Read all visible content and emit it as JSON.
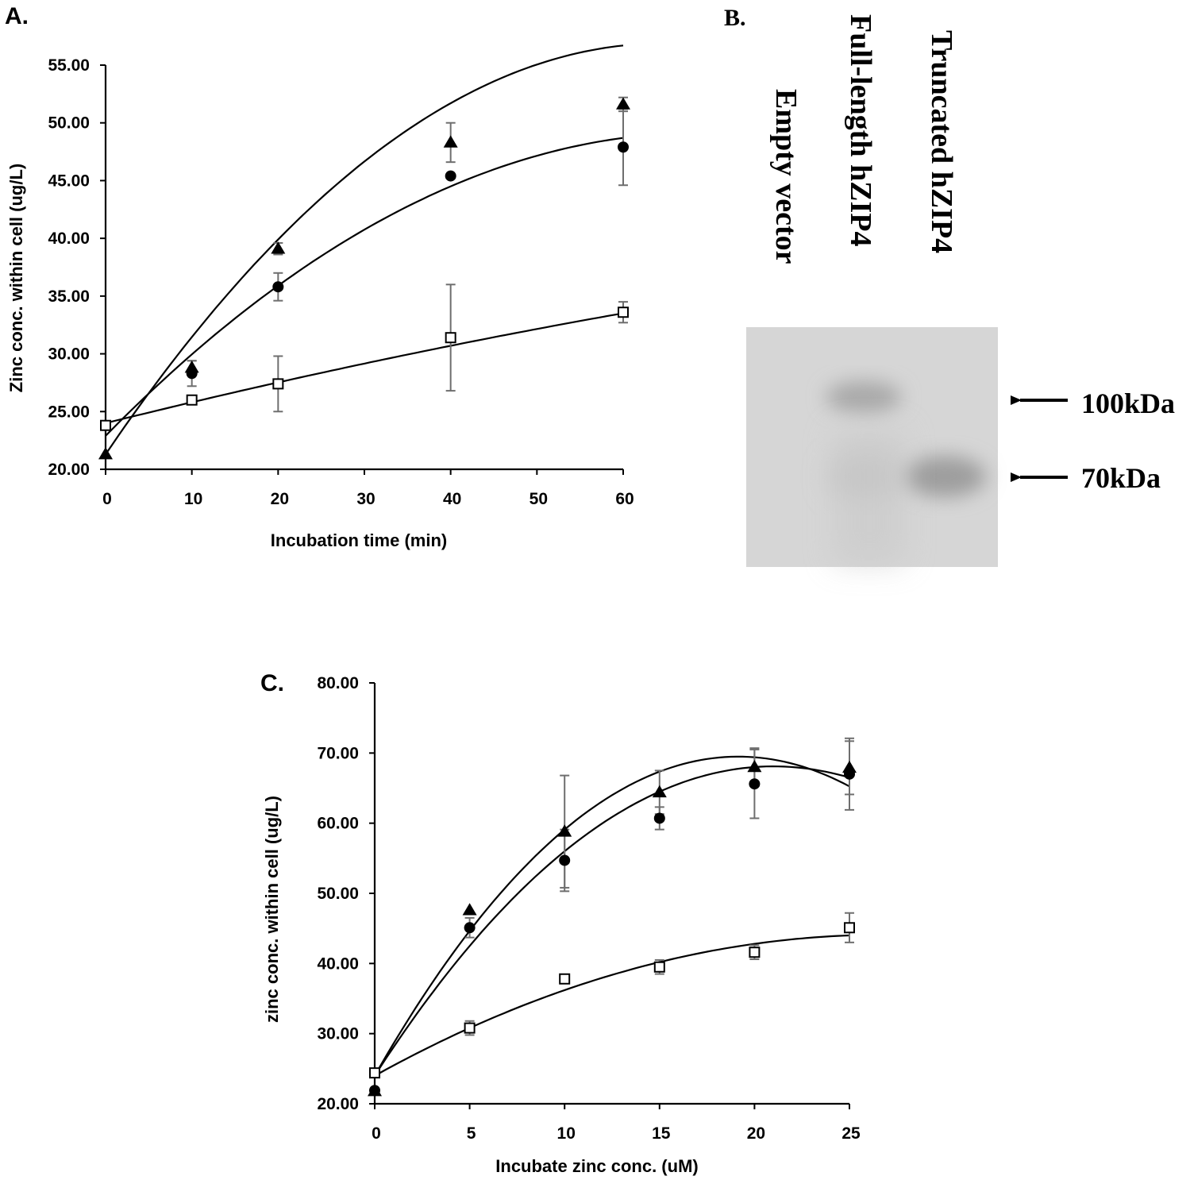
{
  "chart_data": [
    {
      "panel": "A.",
      "type": "scatter",
      "xlabel": "Incubation time (min)",
      "ylabel": "Zinc conc. within cell  (ug/L)",
      "xlim": [
        0,
        60
      ],
      "ylim": [
        20,
        55
      ],
      "xticks": [
        "0",
        "10",
        "20",
        "30",
        "40",
        "50",
        "60"
      ],
      "yticks": [
        "20.00",
        "25.00",
        "30.00",
        "35.00",
        "40.00",
        "45.00",
        "50.00",
        "55.00"
      ],
      "xtick_values": [
        0,
        10,
        20,
        30,
        40,
        50,
        60
      ],
      "ytick_values": [
        20,
        25,
        30,
        35,
        40,
        45,
        50,
        55
      ],
      "series": [
        {
          "marker": "triangle",
          "x": [
            0,
            10,
            20,
            40,
            60
          ],
          "y": [
            21.3,
            28.8,
            39.1,
            48.3,
            51.6
          ],
          "err": [
            0,
            0.6,
            0.5,
            1.7,
            0.6
          ],
          "fit": [
            21.3,
            1.1,
            -0.0085
          ]
        },
        {
          "marker": "circle",
          "x": [
            0,
            10,
            20,
            40,
            60
          ],
          "y": [
            23.8,
            28.3,
            35.8,
            45.4,
            47.9
          ],
          "err": [
            0,
            1.1,
            1.2,
            0,
            3.3
          ],
          "fit": [
            22.9,
            0.76,
            -0.0055
          ]
        },
        {
          "marker": "square",
          "x": [
            0,
            10,
            20,
            40,
            60
          ],
          "y": [
            23.8,
            26.0,
            27.4,
            31.4,
            33.6
          ],
          "err": [
            0,
            0,
            2.4,
            4.6,
            0.9
          ],
          "fit": [
            24.0,
            0.185,
            -0.00044
          ]
        }
      ]
    },
    {
      "panel": "C.",
      "type": "scatter",
      "xlabel": "Incubate zinc conc. (uM)",
      "ylabel": "zinc conc. within cell (ug/L)",
      "xlim": [
        0,
        25
      ],
      "ylim": [
        20,
        80
      ],
      "xticks": [
        "0",
        "5",
        "10",
        "15",
        "20",
        "25"
      ],
      "yticks": [
        "20.00",
        "30.00",
        "40.00",
        "50.00",
        "60.00",
        "70.00",
        "80.00"
      ],
      "xtick_values": [
        0,
        5,
        10,
        15,
        20,
        25
      ],
      "ytick_values": [
        20,
        30,
        40,
        50,
        60,
        70,
        80
      ],
      "series": [
        {
          "marker": "triangle",
          "x": [
            0,
            5,
            10,
            15,
            20,
            25
          ],
          "y": [
            21.8,
            47.6,
            58.8,
            64.4,
            68.0,
            67.9
          ],
          "err": [
            0,
            0,
            8.0,
            3.1,
            2.7,
            3.8
          ],
          "fit": [
            24.0,
            4.75,
            -0.124
          ]
        },
        {
          "marker": "circle",
          "x": [
            0,
            5,
            10,
            15,
            20,
            25
          ],
          "y": [
            21.9,
            45.1,
            54.7,
            60.7,
            65.6,
            67.0
          ],
          "err": [
            0,
            1.4,
            4.4,
            1.6,
            4.9,
            5.1
          ],
          "fit": [
            24.0,
            4.2,
            -0.1
          ]
        },
        {
          "marker": "square",
          "x": [
            0,
            5,
            10,
            15,
            20,
            25
          ],
          "y": [
            24.4,
            30.8,
            37.8,
            39.5,
            41.6,
            45.1
          ],
          "err": [
            0,
            1.0,
            0.6,
            1.0,
            1.0,
            2.1
          ],
          "fit": [
            24.0,
            1.5,
            -0.028
          ]
        }
      ]
    }
  ],
  "blot": {
    "panel": "B.",
    "lanes": [
      "Empty vector",
      "Full-length hZIP4",
      "Truncated hZIP4"
    ],
    "markers": [
      "100kDa",
      "70kDa"
    ],
    "background_color": "#d6d6d6"
  }
}
